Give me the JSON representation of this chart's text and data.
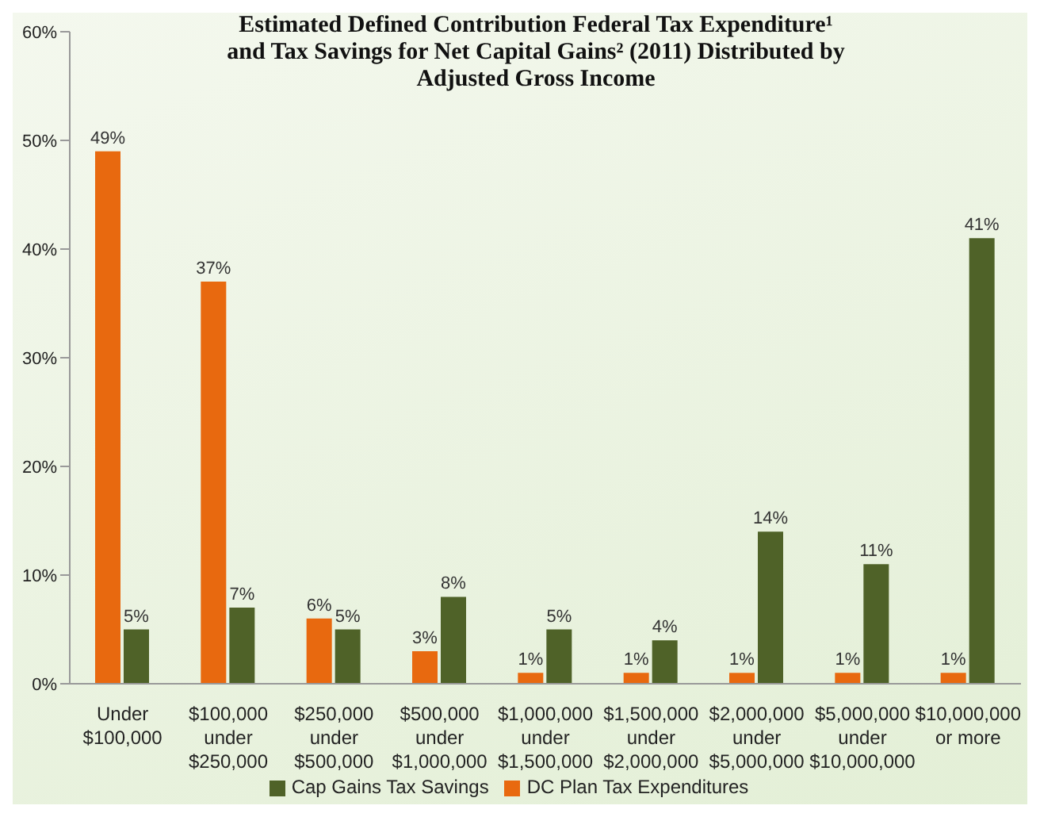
{
  "chart_data": {
    "type": "bar",
    "title": "Estimated Defined Contribution Federal Tax Expenditure¹ and Tax Savings for Net Capital Gains² (2011) Distributed by Adjusted Gross Income",
    "categories": [
      "Under $100,000",
      "$100,000 under $250,000",
      "$250,000 under $500,000",
      "$500,000 under $1,000,000",
      "$1,000,000 under $1,500,000",
      "$1,500,000 under $2,000,000",
      "$2,000,000 under $5,000,000",
      "$5,000,000 under $10,000,000",
      "$10,000,000 or more"
    ],
    "series": [
      {
        "name": "DC Plan Tax Expenditures",
        "color": "#e8690f",
        "values": [
          49,
          37,
          6,
          3,
          1,
          1,
          1,
          1,
          1
        ],
        "value_labels": [
          "49%",
          "37%",
          "6%",
          "3%",
          "1%",
          "1%",
          "1%",
          "1%",
          "1%"
        ]
      },
      {
        "name": "Cap Gains Tax Savings",
        "color": "#4f6228",
        "values": [
          5,
          7,
          5,
          8,
          5,
          4,
          14,
          11,
          41
        ],
        "value_labels": [
          "5%",
          "7%",
          "5%",
          "8%",
          "5%",
          "4%",
          "14%",
          "11%",
          "41%"
        ]
      }
    ],
    "ylim": [
      0,
      60
    ],
    "yticks": [
      {
        "value": 0,
        "label": "0%"
      },
      {
        "value": 10,
        "label": "10%"
      },
      {
        "value": 20,
        "label": "20%"
      },
      {
        "value": 30,
        "label": "30%"
      },
      {
        "value": 40,
        "label": "40%"
      },
      {
        "value": 50,
        "label": "50%"
      },
      {
        "value": 60,
        "label": "60%"
      }
    ],
    "legend": "bottom"
  }
}
